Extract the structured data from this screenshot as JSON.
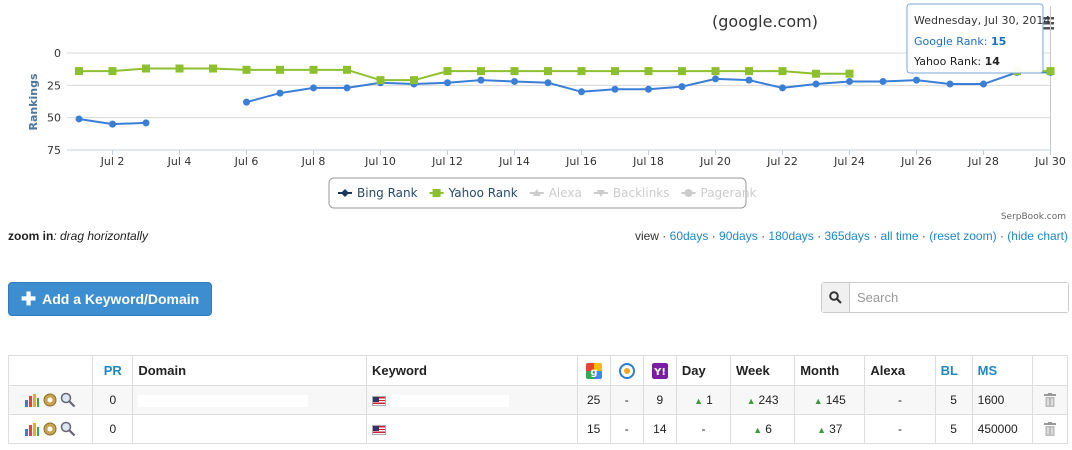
{
  "chart_data": {
    "type": "line",
    "title": "(google.com)",
    "ylabel": "Rankings",
    "xlabel": "",
    "ylim": [
      75,
      0
    ],
    "y_ticks": [
      0,
      25,
      50,
      75
    ],
    "y_reversed": true,
    "x_days": [
      "Jul 1",
      "Jul 2",
      "Jul 3",
      "Jul 4",
      "Jul 5",
      "Jul 6",
      "Jul 7",
      "Jul 8",
      "Jul 9",
      "Jul 10",
      "Jul 11",
      "Jul 12",
      "Jul 13",
      "Jul 14",
      "Jul 15",
      "Jul 16",
      "Jul 17",
      "Jul 18",
      "Jul 19",
      "Jul 20",
      "Jul 21",
      "Jul 22",
      "Jul 23",
      "Jul 24",
      "Jul 25",
      "Jul 26",
      "Jul 27",
      "Jul 28",
      "Jul 29",
      "Jul 30"
    ],
    "x_tick_labels": [
      "Jul 2",
      "Jul 4",
      "Jul 6",
      "Jul 8",
      "Jul 10",
      "Jul 12",
      "Jul 14",
      "Jul 16",
      "Jul 18",
      "Jul 20",
      "Jul 22",
      "Jul 24",
      "Jul 26",
      "Jul 28",
      "Jul 30"
    ],
    "series": [
      {
        "name": "Bing Rank",
        "color": "#3a7fd5",
        "marker": "circle",
        "values": [
          51,
          55,
          54,
          null,
          null,
          38,
          31,
          27,
          27,
          23,
          24,
          23,
          21,
          22,
          23,
          30,
          28,
          28,
          26,
          20,
          21,
          27,
          24,
          22,
          22,
          21,
          24,
          24,
          15,
          15
        ]
      },
      {
        "name": "Yahoo Rank",
        "color": "#8dc02e",
        "marker": "square",
        "values": [
          14,
          14,
          12,
          12,
          12,
          13,
          13,
          13,
          13,
          21,
          21,
          14,
          14,
          14,
          14,
          14,
          14,
          14,
          14,
          14,
          14,
          14,
          16,
          16,
          null,
          null,
          null,
          null,
          14,
          14
        ]
      }
    ],
    "legend": {
      "placement": "bottom-center",
      "items": [
        {
          "label": "Bing Rank",
          "color": "#17375e",
          "active": true
        },
        {
          "label": "Yahoo Rank",
          "color": "#8dc02e",
          "active": true
        },
        {
          "label": "Alexa",
          "color": "#cccccc",
          "active": false
        },
        {
          "label": "Backlinks",
          "color": "#cccccc",
          "active": false
        },
        {
          "label": "Pagerank",
          "color": "#cccccc",
          "active": false
        }
      ]
    },
    "tooltip": {
      "date": "Wednesday, Jul 30, 2014",
      "lines": [
        {
          "label": "Google Rank: ",
          "value": "15",
          "color": "#1f6fbf"
        },
        {
          "label": "Yahoo Rank: ",
          "value": "14",
          "color": "#222222"
        }
      ]
    },
    "credit": "SerpBook.com",
    "grid": true
  },
  "zoom_hint": {
    "bold": "zoom in",
    "rest": ": drag horizontally"
  },
  "view": {
    "label": "view ·",
    "links": [
      "60days",
      "90days",
      "180days",
      "365days",
      "all time",
      "(reset zoom)",
      "(hide chart)"
    ]
  },
  "add_button": {
    "label": "Add a Keyword/Domain"
  },
  "search": {
    "placeholder": "Search"
  },
  "table": {
    "headers": {
      "pr": "PR",
      "domain": "Domain",
      "keyword": "Keyword",
      "day": "Day",
      "week": "Week",
      "month": "Month",
      "alexa": "Alexa",
      "bl": "BL",
      "ms": "MS"
    },
    "rows": [
      {
        "pr": "0",
        "google": "25",
        "bing": "-",
        "yahoo": "9",
        "day": "1",
        "day_up": true,
        "week": "243",
        "month": "145",
        "alexa": "-",
        "bl": "5",
        "ms": "1600"
      },
      {
        "pr": "0",
        "google": "15",
        "bing": "-",
        "yahoo": "14",
        "day": "-",
        "day_up": false,
        "week": "6",
        "month": "37",
        "alexa": "-",
        "bl": "5",
        "ms": "450000"
      }
    ]
  }
}
